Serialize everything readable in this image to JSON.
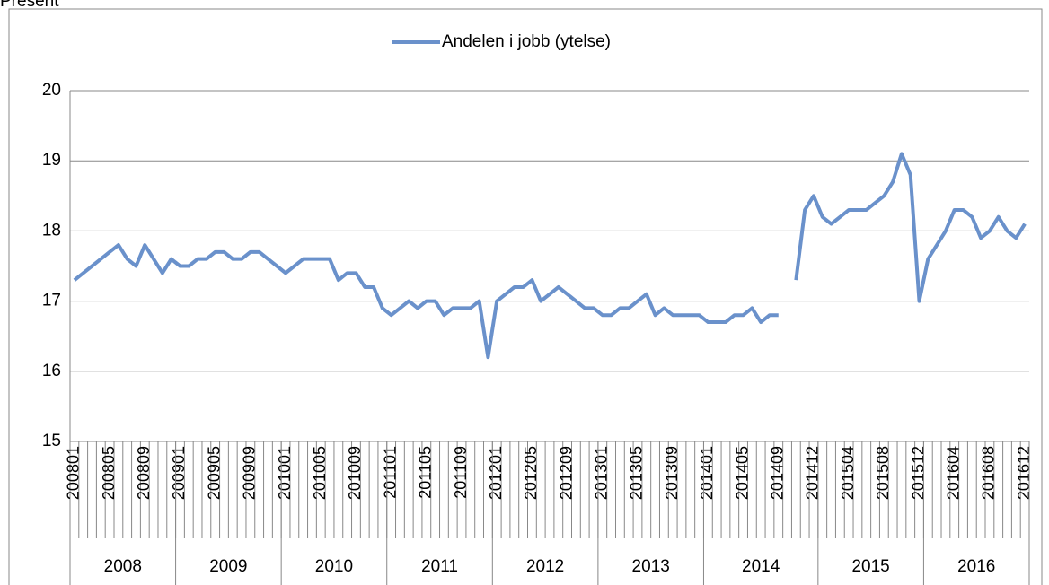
{
  "chart_data": {
    "type": "line",
    "title": "Present",
    "categories": [
      "200801",
      null,
      null,
      null,
      "200805",
      null,
      null,
      null,
      "200809",
      null,
      null,
      null,
      "200901",
      null,
      null,
      null,
      "200905",
      null,
      null,
      null,
      "200909",
      null,
      null,
      null,
      "201001",
      null,
      null,
      null,
      "201005",
      null,
      null,
      null,
      "201009",
      null,
      null,
      null,
      "201101",
      null,
      null,
      null,
      "201105",
      null,
      null,
      null,
      "201109",
      null,
      null,
      null,
      "201201",
      null,
      null,
      null,
      "201205",
      null,
      null,
      null,
      "201209",
      null,
      null,
      null,
      "201301",
      null,
      null,
      null,
      "201305",
      null,
      null,
      null,
      "201309",
      null,
      null,
      null,
      "201401",
      null,
      null,
      null,
      "201405",
      null,
      null,
      null,
      "201409",
      null,
      null,
      null,
      "201412",
      null,
      null,
      null,
      "201504",
      null,
      null,
      null,
      "201508",
      null,
      null,
      null,
      "201512",
      null,
      null,
      null,
      "201604",
      null,
      null,
      null,
      "201608",
      null,
      null,
      null,
      "201612"
    ],
    "groups": [
      {
        "name": "2008",
        "size": 12
      },
      {
        "name": "2009",
        "size": 12
      },
      {
        "name": "2010",
        "size": 12
      },
      {
        "name": "2011",
        "size": 12
      },
      {
        "name": "2012",
        "size": 12
      },
      {
        "name": "2013",
        "size": 12
      },
      {
        "name": "2014",
        "size": 13
      },
      {
        "name": "2015",
        "size": 12
      },
      {
        "name": "2016",
        "size": 12
      }
    ],
    "series": [
      {
        "name": "Andelen i jobb (ytelse)",
        "color": "#6a91cb",
        "values": [
          17.3,
          17.4,
          17.5,
          17.6,
          17.7,
          17.8,
          17.6,
          17.5,
          17.8,
          17.6,
          17.4,
          17.6,
          17.5,
          17.5,
          17.6,
          17.6,
          17.7,
          17.7,
          17.6,
          17.6,
          17.7,
          17.7,
          17.6,
          17.5,
          17.4,
          17.5,
          17.6,
          17.6,
          17.6,
          17.6,
          17.3,
          17.4,
          17.4,
          17.2,
          17.2,
          16.9,
          16.8,
          16.9,
          17.0,
          16.9,
          17.0,
          17.0,
          16.8,
          16.9,
          16.9,
          16.9,
          17.0,
          16.2,
          17.0,
          17.1,
          17.2,
          17.2,
          17.3,
          17.0,
          17.1,
          17.2,
          17.1,
          17.0,
          16.9,
          16.9,
          16.8,
          16.8,
          16.9,
          16.9,
          17.0,
          17.1,
          16.8,
          16.9,
          16.8,
          16.8,
          16.8,
          16.8,
          16.7,
          16.7,
          16.7,
          16.8,
          16.8,
          16.9,
          16.7,
          16.8,
          16.8,
          null,
          17.3,
          18.3,
          18.5,
          18.2,
          18.1,
          18.2,
          18.3,
          18.3,
          18.3,
          18.4,
          18.5,
          18.7,
          19.1,
          18.8,
          17.0,
          17.6,
          17.8,
          18.0,
          18.3,
          18.3,
          18.2,
          17.9,
          18.0,
          18.2,
          18.0,
          17.9,
          18.1
        ]
      }
    ],
    "ylim": [
      15,
      20
    ],
    "yticks": [
      15,
      16,
      17,
      18,
      19,
      20
    ],
    "grid": true,
    "legend": "top"
  }
}
